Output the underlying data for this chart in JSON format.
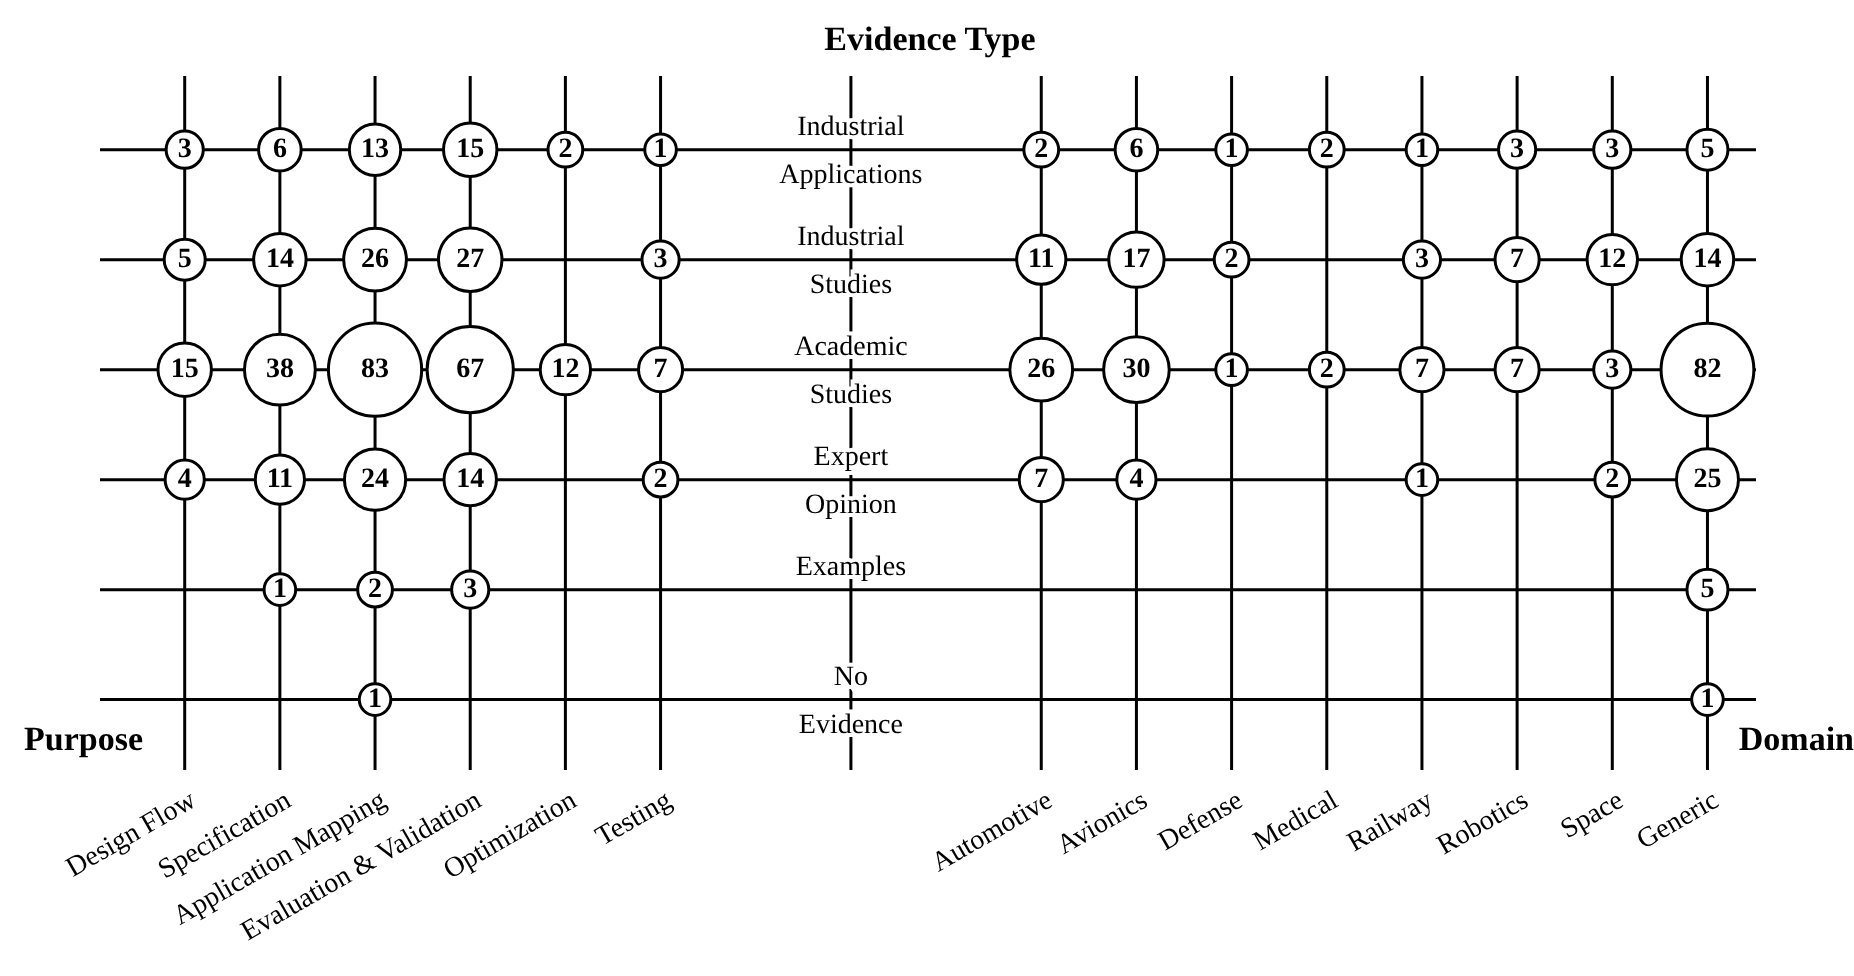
{
  "chart_data": {
    "type": "heatmap",
    "title": "Evidence Type",
    "annotations": [
      "Purpose",
      "Domain"
    ],
    "categories": [
      "Design Flow",
      "Specification",
      "Application Mapping",
      "Evaluation & Validation",
      "Optimization",
      "Testing",
      null,
      null,
      null,
      "Automotive",
      "Avionics",
      "Defense",
      "Medical",
      "Railway",
      "Robotics",
      "Space",
      "Generic"
    ],
    "y_categories": [
      "Industrial Applications",
      "Industrial Studies",
      "Academic Studies",
      "Expert Opinion",
      "Examples",
      "No Evidence"
    ],
    "cells": [
      [
        3,
        6,
        13,
        15,
        2,
        1,
        null,
        null,
        null,
        2,
        6,
        1,
        2,
        1,
        3,
        3,
        5
      ],
      [
        5,
        14,
        26,
        27,
        null,
        3,
        null,
        null,
        null,
        11,
        17,
        2,
        null,
        3,
        7,
        12,
        14
      ],
      [
        15,
        38,
        83,
        67,
        12,
        7,
        null,
        null,
        null,
        26,
        30,
        1,
        2,
        7,
        7,
        3,
        82
      ],
      [
        4,
        11,
        24,
        14,
        null,
        2,
        null,
        null,
        null,
        7,
        4,
        null,
        null,
        1,
        null,
        2,
        25
      ],
      [
        null,
        1,
        2,
        3,
        null,
        null,
        null,
        null,
        null,
        null,
        null,
        null,
        null,
        null,
        null,
        null,
        5
      ],
      [
        null,
        null,
        1,
        null,
        null,
        null,
        null,
        null,
        null,
        null,
        null,
        null,
        null,
        null,
        null,
        null,
        1
      ]
    ],
    "data_labels": true,
    "grid": true
  }
}
